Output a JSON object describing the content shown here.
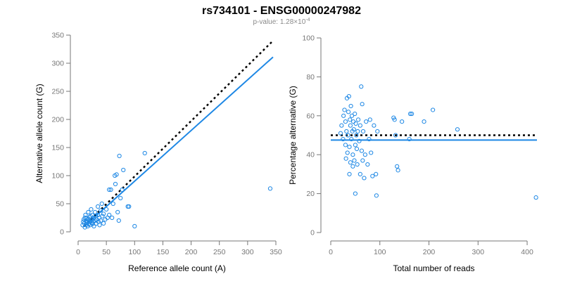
{
  "title": "rs734101 - ENSG00000247982",
  "subtitle": {
    "text": "p-value: 1.28×10",
    "exponent": "-4"
  },
  "colors": {
    "points": "#1E88E5",
    "fit_line": "#1E88E5",
    "expected_line": "#000000",
    "axis": "#777777"
  },
  "chart_data": [
    {
      "type": "scatter",
      "xlabel": "Reference allele count (A)",
      "ylabel": "Alternative allele count (G)",
      "xlim": [
        0,
        350
      ],
      "ylim": [
        0,
        350
      ],
      "xticks": [
        0,
        50,
        100,
        150,
        200,
        250,
        300,
        350
      ],
      "yticks": [
        0,
        50,
        100,
        150,
        200,
        250,
        300,
        350
      ],
      "points": [
        [
          8,
          12
        ],
        [
          9,
          18
        ],
        [
          10,
          22
        ],
        [
          11,
          15
        ],
        [
          12,
          25
        ],
        [
          12,
          8
        ],
        [
          13,
          30
        ],
        [
          14,
          20
        ],
        [
          14,
          12
        ],
        [
          15,
          24
        ],
        [
          15,
          16
        ],
        [
          16,
          18
        ],
        [
          17,
          10
        ],
        [
          18,
          22
        ],
        [
          18,
          35
        ],
        [
          19,
          14
        ],
        [
          20,
          26
        ],
        [
          20,
          18
        ],
        [
          21,
          12
        ],
        [
          22,
          28
        ],
        [
          22,
          20
        ],
        [
          23,
          40
        ],
        [
          24,
          16
        ],
        [
          25,
          22
        ],
        [
          25,
          30
        ],
        [
          26,
          14
        ],
        [
          27,
          18
        ],
        [
          28,
          25
        ],
        [
          28,
          10
        ],
        [
          30,
          20
        ],
        [
          30,
          35
        ],
        [
          31,
          28
        ],
        [
          32,
          15
        ],
        [
          33,
          22
        ],
        [
          35,
          30
        ],
        [
          35,
          45
        ],
        [
          36,
          18
        ],
        [
          37,
          25
        ],
        [
          38,
          12
        ],
        [
          40,
          20
        ],
        [
          40,
          38
        ],
        [
          42,
          50
        ],
        [
          43,
          28
        ],
        [
          45,
          15
        ],
        [
          45,
          32
        ],
        [
          48,
          22
        ],
        [
          50,
          40
        ],
        [
          52,
          25
        ],
        [
          55,
          30
        ],
        [
          55,
          75
        ],
        [
          58,
          75
        ],
        [
          60,
          25
        ],
        [
          62,
          50
        ],
        [
          65,
          100
        ],
        [
          66,
          85
        ],
        [
          68,
          102
        ],
        [
          70,
          35
        ],
        [
          72,
          20
        ],
        [
          73,
          135
        ],
        [
          75,
          60
        ],
        [
          78,
          75
        ],
        [
          80,
          110
        ],
        [
          88,
          45
        ],
        [
          90,
          45
        ],
        [
          100,
          10
        ],
        [
          118,
          140
        ],
        [
          340,
          77
        ]
      ],
      "series": [
        {
          "name": "",
          "style": "solid",
          "color": "#1E88E5",
          "x": [
            10,
            345
          ],
          "y": [
            9,
            311
          ]
        },
        {
          "name": "",
          "style": "dotted",
          "color": "#000000",
          "x": [
            10,
            345
          ],
          "y": [
            10,
            340
          ]
        }
      ]
    },
    {
      "type": "scatter",
      "xlabel": "Total number of reads",
      "ylabel": "Percentage alternative (G)",
      "xlim": [
        0,
        420
      ],
      "ylim": [
        0,
        100
      ],
      "xticks": [
        0,
        100,
        200,
        300,
        400
      ],
      "yticks": [
        0,
        20,
        40,
        60,
        80,
        100
      ],
      "points": [
        [
          20,
          51
        ],
        [
          22,
          55
        ],
        [
          25,
          48
        ],
        [
          26,
          60
        ],
        [
          28,
          63
        ],
        [
          30,
          57
        ],
        [
          30,
          45
        ],
        [
          31,
          38
        ],
        [
          32,
          52
        ],
        [
          33,
          69
        ],
        [
          34,
          41
        ],
        [
          35,
          50
        ],
        [
          36,
          62
        ],
        [
          37,
          70
        ],
        [
          38,
          44
        ],
        [
          38,
          30
        ],
        [
          39,
          58
        ],
        [
          40,
          55
        ],
        [
          40,
          36
        ],
        [
          41,
          65
        ],
        [
          42,
          48
        ],
        [
          43,
          60
        ],
        [
          44,
          52
        ],
        [
          45,
          40
        ],
        [
          45,
          34
        ],
        [
          46,
          57
        ],
        [
          47,
          53
        ],
        [
          48,
          37
        ],
        [
          49,
          61
        ],
        [
          50,
          45
        ],
        [
          50,
          20
        ],
        [
          51,
          56
        ],
        [
          52,
          50
        ],
        [
          53,
          43
        ],
        [
          54,
          35
        ],
        [
          55,
          52
        ],
        [
          56,
          58
        ],
        [
          58,
          47
        ],
        [
          60,
          55
        ],
        [
          60,
          30
        ],
        [
          62,
          75
        ],
        [
          63,
          42
        ],
        [
          64,
          66
        ],
        [
          65,
          37
        ],
        [
          66,
          52
        ],
        [
          68,
          28
        ],
        [
          70,
          40
        ],
        [
          72,
          57
        ],
        [
          75,
          35
        ],
        [
          78,
          48
        ],
        [
          80,
          58
        ],
        [
          82,
          41
        ],
        [
          85,
          29
        ],
        [
          88,
          55
        ],
        [
          92,
          30
        ],
        [
          93,
          19
        ],
        [
          95,
          52
        ],
        [
          128,
          59
        ],
        [
          130,
          58
        ],
        [
          132,
          50
        ],
        [
          135,
          34
        ],
        [
          137,
          32
        ],
        [
          145,
          57
        ],
        [
          160,
          48
        ],
        [
          162,
          61
        ],
        [
          165,
          61
        ],
        [
          190,
          57
        ],
        [
          208,
          63
        ],
        [
          258,
          53
        ],
        [
          418,
          18
        ]
      ],
      "series": [
        {
          "name": "",
          "style": "solid",
          "color": "#1E88E5",
          "x": [
            0,
            420
          ],
          "y": [
            47.5,
            47.5
          ]
        },
        {
          "name": "",
          "style": "dotted",
          "color": "#000000",
          "x": [
            0,
            420
          ],
          "y": [
            50,
            50
          ]
        }
      ]
    }
  ]
}
